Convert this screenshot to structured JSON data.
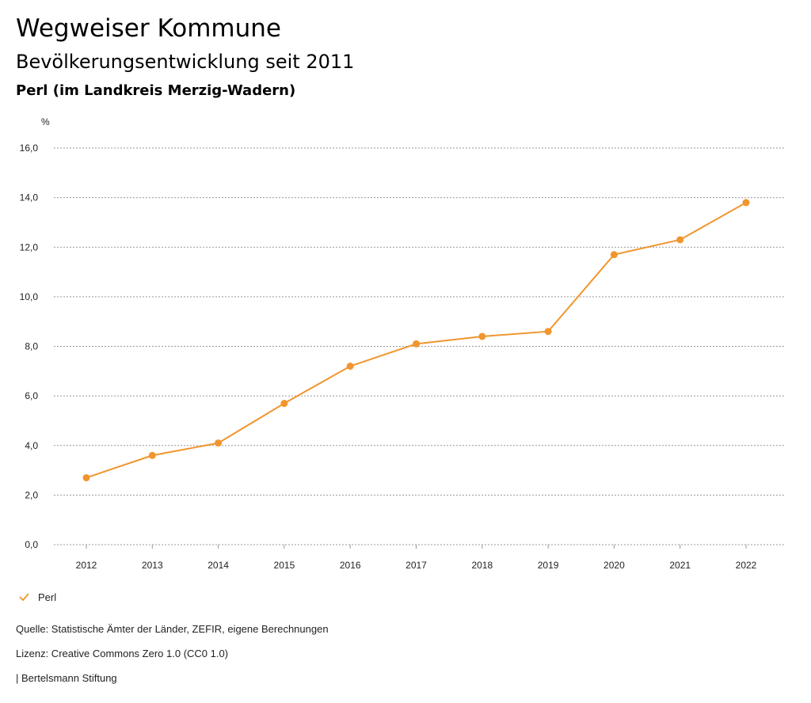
{
  "header": {
    "title": "Wegweiser Kommune",
    "subtitle": "Bevölkerungsentwicklung seit 2011",
    "region": "Perl (im Landkreis Merzig-Wadern)"
  },
  "chart_data": {
    "type": "line",
    "ylabel": "%",
    "ylim": [
      0,
      16
    ],
    "yticks": [
      "0,0",
      "2,0",
      "4,0",
      "6,0",
      "8,0",
      "10,0",
      "12,0",
      "14,0",
      "16,0"
    ],
    "categories": [
      "2012",
      "2013",
      "2014",
      "2015",
      "2016",
      "2017",
      "2018",
      "2019",
      "2020",
      "2021",
      "2022"
    ],
    "series": [
      {
        "name": "Perl",
        "color": "#f0962e",
        "values": [
          2.7,
          3.6,
          4.1,
          5.7,
          7.2,
          8.1,
          8.4,
          8.6,
          11.7,
          12.3,
          13.8
        ]
      }
    ],
    "grid": true,
    "legend": "bottom-left"
  },
  "footer": {
    "source": "Quelle: Statistische Ämter der Länder, ZEFIR, eigene Berechnungen",
    "license": "Lizenz: Creative Commons Zero 1.0 (CC0 1.0)",
    "publisher": "| Bertelsmann Stiftung"
  }
}
